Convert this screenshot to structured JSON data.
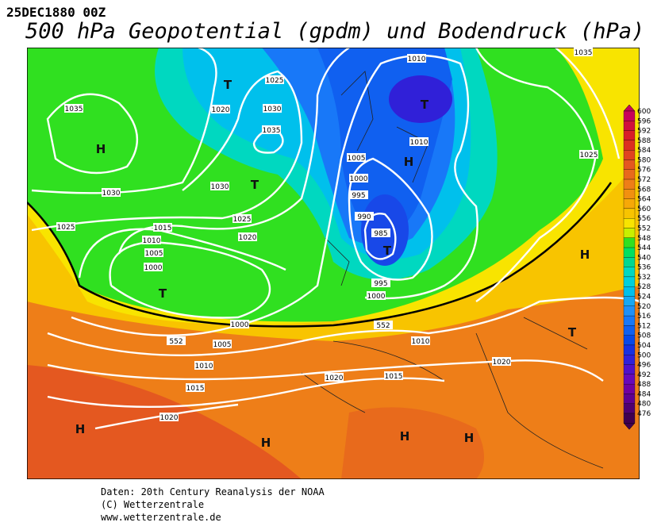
{
  "header": {
    "date": "25DEC1880 00Z",
    "title": "500 hPa Geopotential (gpdm) und Bodendruck (hPa)"
  },
  "map": {
    "isobar_labels": [
      "1035",
      "1030",
      "1025",
      "1020",
      "1025",
      "1030",
      "1035",
      "1030",
      "1025",
      "1020",
      "1015",
      "1010",
      "1005",
      "1000",
      "1000",
      "1005",
      "1010",
      "1015",
      "1020",
      "1010",
      "1035",
      "1010",
      "1005",
      "1000",
      "995",
      "990",
      "985",
      "995",
      "1000",
      "1025",
      "1010",
      "1020",
      "1015",
      "1020",
      "552",
      "552"
    ],
    "centers": [
      "H",
      "T",
      "T",
      "T",
      "T",
      "H",
      "T",
      "H",
      "T",
      "H",
      "H",
      "H",
      "H"
    ]
  },
  "legend": {
    "levels": [
      {
        "label": "600",
        "color": "#c8005a"
      },
      {
        "label": "596",
        "color": "#d0103c"
      },
      {
        "label": "592",
        "color": "#d81e28"
      },
      {
        "label": "588",
        "color": "#dc3020"
      },
      {
        "label": "584",
        "color": "#e04420"
      },
      {
        "label": "580",
        "color": "#e45820"
      },
      {
        "label": "576",
        "color": "#e86a1c"
      },
      {
        "label": "572",
        "color": "#ee7e18"
      },
      {
        "label": "568",
        "color": "#f29010"
      },
      {
        "label": "564",
        "color": "#f6a808"
      },
      {
        "label": "560",
        "color": "#f8c400"
      },
      {
        "label": "556",
        "color": "#f8e400"
      },
      {
        "label": "552",
        "color": "#c8f000"
      },
      {
        "label": "548",
        "color": "#30e020"
      },
      {
        "label": "544",
        "color": "#00e060"
      },
      {
        "label": "540",
        "color": "#00d890"
      },
      {
        "label": "536",
        "color": "#00d8c0"
      },
      {
        "label": "532",
        "color": "#00d0dc"
      },
      {
        "label": "528",
        "color": "#00c0ec"
      },
      {
        "label": "524",
        "color": "#18a8f4"
      },
      {
        "label": "520",
        "color": "#2090f8"
      },
      {
        "label": "516",
        "color": "#1878f8"
      },
      {
        "label": "512",
        "color": "#1060f0"
      },
      {
        "label": "508",
        "color": "#0848e8"
      },
      {
        "label": "504",
        "color": "#1830e0"
      },
      {
        "label": "500",
        "color": "#3020d8"
      },
      {
        "label": "496",
        "color": "#5010c8"
      },
      {
        "label": "492",
        "color": "#6808b8"
      },
      {
        "label": "488",
        "color": "#7000a0"
      },
      {
        "label": "484",
        "color": "#600090"
      },
      {
        "label": "480",
        "color": "#500070"
      },
      {
        "label": "476",
        "color": "#400050"
      }
    ]
  },
  "footer": {
    "lines": [
      "Daten: 20th Century Reanalysis der NOAA",
      "(C) Wetterzentrale",
      "www.wetterzentrale.de"
    ]
  }
}
